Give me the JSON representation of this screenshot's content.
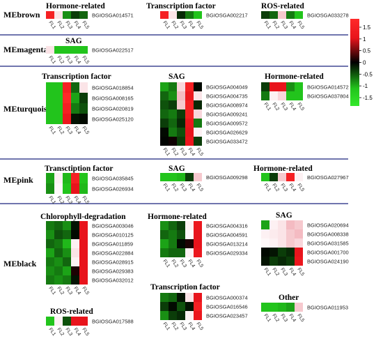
{
  "figure": {
    "colorbar": {
      "ticks": [
        "1.5",
        "1",
        "0.5",
        "0",
        "-0.5",
        "-1",
        "-1.5"
      ],
      "colors": {
        "high": "#e8141c",
        "mid": "#000000",
        "low": "#22c41c"
      }
    },
    "columns": [
      "FL1",
      "FL2",
      "FL3",
      "FL4",
      "FL5"
    ],
    "modules": [
      {
        "name": "MEbrown",
        "blocks": [
          {
            "title": "Hormone-related",
            "genes": [
              "BGIOSGA014571"
            ],
            "values": [
              [
                1.5,
                0.3,
                -0.7,
                -0.3,
                -0.5
              ]
            ]
          },
          {
            "title": "Transcription factor",
            "genes": [
              "BGIOSGA002217"
            ],
            "values": [
              [
                1.5,
                0.3,
                -0.2,
                -0.6,
                -1.5
              ]
            ]
          },
          {
            "title": "ROS-related",
            "genes": [
              "BGIOSGA033278"
            ],
            "values": [
              [
                -0.3,
                -0.5,
                0.5,
                -0.6,
                -1.5
              ]
            ]
          }
        ]
      },
      {
        "name": "MEmagenta",
        "blocks": [
          {
            "title": "SAG",
            "genes": [
              "BGIOSGA022517"
            ],
            "values": [
              [
                0.3,
                -1.2,
                -1.5,
                -1.5,
                -1.5
              ]
            ]
          }
        ]
      },
      {
        "name": "MEturquoise",
        "blocks": [
          {
            "title": "Transcription factor",
            "genes": [
              "BGIOSGA018854",
              "BGIOSGA008165",
              "BGIOSGA020819",
              "BGIOSGA025120"
            ],
            "values": [
              [
                -1.0,
                -1.3,
                1.5,
                -0.5,
                0.3
              ],
              [
                -1.2,
                -1.4,
                1.6,
                -0.8,
                -0.3
              ],
              [
                -1.4,
                -1.3,
                1.5,
                -0.6,
                -0.4
              ],
              [
                -1.3,
                -1.2,
                1.4,
                -0.1,
                -0.05
              ]
            ]
          },
          {
            "title": "SAG",
            "genes": [
              "BGIOSGA004049",
              "BGIOSGA004735",
              "BGIOSGA008974",
              "BGIOSGA009241",
              "BGIOSGA009572",
              "BGIOSGA026629",
              "BGIOSGA033472"
            ],
            "values": [
              [
                -0.8,
                -0.6,
                0.4,
                1.5,
                -0.05
              ],
              [
                -0.5,
                -0.7,
                0.6,
                1.4,
                0.3
              ],
              [
                -0.4,
                -0.3,
                0.5,
                1.5,
                -0.2
              ],
              [
                -0.5,
                -0.6,
                -0.3,
                1.5,
                0.4
              ],
              [
                -0.3,
                -0.5,
                -0.2,
                1.4,
                -0.6
              ],
              [
                -0.05,
                -0.6,
                -0.4,
                1.3,
                0.2
              ],
              [
                -0.02,
                0.05,
                -0.3,
                1.4,
                -0.3
              ]
            ]
          },
          {
            "title": "Hormone-related",
            "genes": [
              "BGIOSGA014572",
              "BGIOSGA037804"
            ],
            "values": [
              [
                -0.3,
                0.8,
                1.0,
                -0.7,
                -1.2
              ],
              [
                -0.6,
                0.2,
                0.4,
                -1.3,
                -1.5
              ]
            ]
          }
        ]
      },
      {
        "name": "MEpink",
        "blocks": [
          {
            "title": "Transctiption factor",
            "genes": [
              "BGIOSGA035845",
              "BGIOSGA026934"
            ],
            "values": [
              [
                -0.8,
                0.2,
                -0.9,
                1.5,
                -1.0
              ],
              [
                -0.7,
                0.15,
                -1.0,
                1.2,
                -0.9
              ]
            ]
          },
          {
            "title": "SAG",
            "genes": [
              "BGIOSGA009298"
            ],
            "values": [
              [
                -1.5,
                -1.2,
                -0.9,
                -0.3,
                0.5
              ]
            ]
          },
          {
            "title": "Hormone-related",
            "genes": [
              "BGIOSGA027967"
            ],
            "values": [
              [
                -1.0,
                -0.3,
                0.5,
                1.5,
                0.2
              ]
            ]
          }
        ]
      },
      {
        "name": "MEblack",
        "blocks": [
          {
            "title": "Chlorophyll-degradation",
            "genes": [
              "BGIOSGA003046",
              "BGIOSGA010125",
              "BGIOSGA011859",
              "BGIOSGA022884",
              "BGIOSGA028915",
              "BGIOSGA029383",
              "BGIOSGA032012"
            ],
            "values": [
              [
                -0.6,
                -0.5,
                -0.7,
                -0.1,
                1.0
              ],
              [
                -0.7,
                -0.4,
                -0.5,
                -0.05,
                1.2
              ],
              [
                -0.5,
                -0.6,
                -0.9,
                0.2,
                1.1
              ],
              [
                -0.8,
                -0.5,
                -0.7,
                0.3,
                1.3
              ],
              [
                -0.6,
                -0.7,
                -0.5,
                0.2,
                1.2
              ],
              [
                -0.7,
                -0.6,
                -0.8,
                0.1,
                1.3
              ],
              [
                -0.6,
                -0.7,
                -0.6,
                -0.1,
                1.2
              ]
            ]
          },
          {
            "title": "Hormone-related",
            "genes": [
              "BGIOSGA004316",
              "BGIOSGA004591",
              "BGIOSGA013214",
              "BGIOSGA029334"
            ],
            "values": [
              [
                -0.7,
                -0.5,
                -0.3,
                0.2,
                1.4
              ],
              [
                -0.5,
                -0.6,
                -0.4,
                0.15,
                1.3
              ],
              [
                -0.8,
                -0.6,
                -0.05,
                0.1,
                1.2
              ],
              [
                -0.6,
                -0.5,
                -0.5,
                0.2,
                1.4
              ]
            ]
          },
          {
            "title": "SAG",
            "genes": [
              "BGIOSGA020694",
              "BGIOSGA008338",
              "BGIOSGA031585",
              "BGIOSGA001700",
              "BGIOSGA024190"
            ],
            "values": [
              [
                -0.8,
                0.2,
                0.3,
                0.6,
                0.5
              ],
              [
                0.2,
                0.25,
                0.3,
                0.5,
                0.6
              ],
              [
                0.15,
                0.2,
                0.3,
                0.5,
                0.4
              ],
              [
                -0.05,
                -0.1,
                -0.3,
                -0.2,
                1.3
              ],
              [
                -0.1,
                -0.3,
                -0.2,
                -0.3,
                1.4
              ]
            ]
          },
          {
            "title": "Transcription factor",
            "genes": [
              "BGIOSGA000374",
              "BGIOSGA016546",
              "BGIOSGA023457"
            ],
            "values": [
              [
                -0.6,
                -0.5,
                -0.1,
                0.3,
                1.3
              ],
              [
                -0.3,
                -0.05,
                -0.4,
                -0.1,
                1.5
              ],
              [
                -0.7,
                -0.3,
                -0.2,
                0.2,
                1.4
              ]
            ]
          },
          {
            "title": "ROS-related",
            "genes": [
              "BGIOSGA017588"
            ],
            "values": [
              [
                -1.0,
                0.2,
                -0.4,
                1.2,
                0.8
              ]
            ]
          },
          {
            "title": "Other",
            "genes": [
              "BGIOSGA011953"
            ],
            "values": [
              [
                -1.2,
                -1.0,
                -0.9,
                -0.8,
                0.5
              ]
            ]
          }
        ]
      }
    ]
  }
}
